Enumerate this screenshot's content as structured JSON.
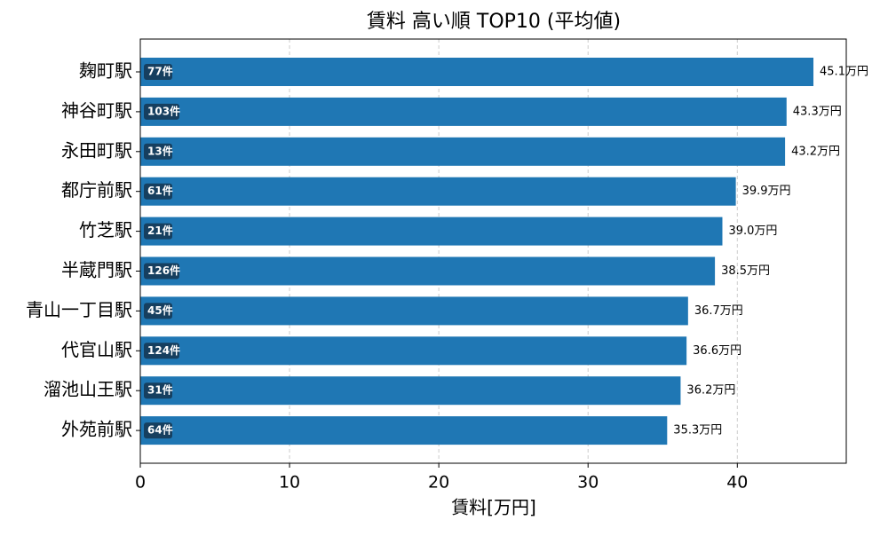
{
  "chart_data": {
    "type": "barh",
    "title": "賃料 高い順 TOP10 (平均値)",
    "x_label": "賃料[万円]",
    "categories": [
      "麹町駅",
      "神谷町駅",
      "永田町駅",
      "都庁前駅",
      "竹芝駅",
      "半蔵門駅",
      "青山一丁目駅",
      "代官山駅",
      "溜池山王駅",
      "外苑前駅"
    ],
    "values": [
      45.1,
      43.3,
      43.2,
      39.9,
      39.0,
      38.5,
      36.7,
      36.6,
      36.2,
      35.3
    ],
    "value_labels": [
      "45.1万円",
      "43.3万円",
      "43.2万円",
      "39.9万円",
      "39.0万円",
      "38.5万円",
      "36.7万円",
      "36.6万円",
      "36.2万円",
      "35.3万円"
    ],
    "count_labels": [
      "77件",
      "103件",
      "13件",
      "61件",
      "21件",
      "126件",
      "45件",
      "124件",
      "31件",
      "64件"
    ],
    "color": "#1f77b4",
    "count_box_color": "#163f5f",
    "xlim": [
      0,
      47.3
    ],
    "xticks": [
      0,
      10,
      20,
      30,
      40
    ],
    "grid": true
  }
}
